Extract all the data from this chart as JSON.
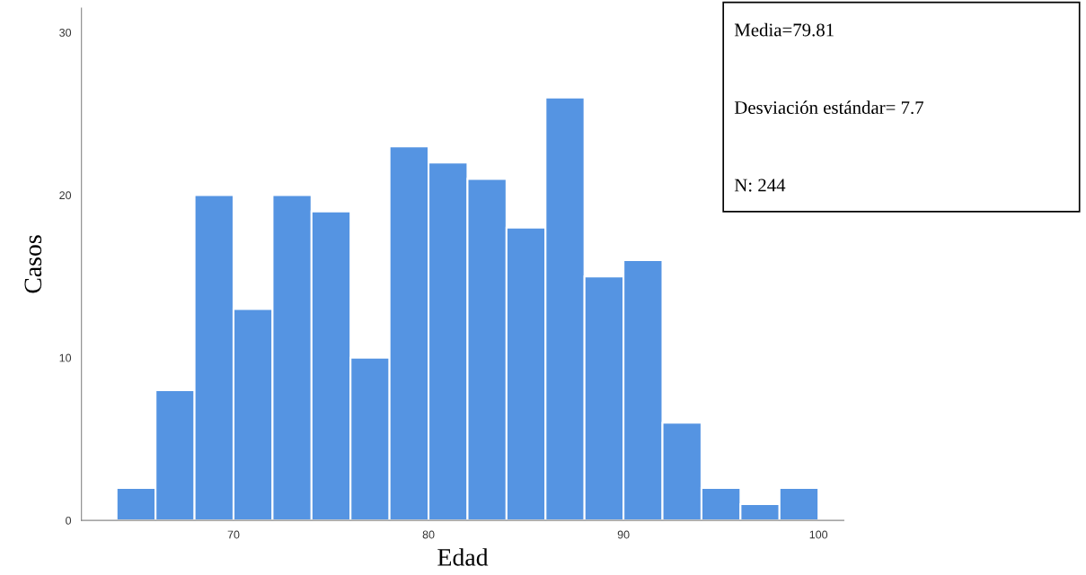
{
  "chart_data": {
    "type": "histogram",
    "xlabel": "Edad",
    "ylabel": "Casos",
    "bins": [
      64,
      66,
      68,
      70,
      72,
      74,
      76,
      78,
      80,
      82,
      84,
      86,
      88,
      90,
      92,
      94,
      96,
      98,
      100
    ],
    "values": [
      2,
      8,
      20,
      13,
      20,
      19,
      10,
      23,
      22,
      21,
      18,
      26,
      15,
      16,
      6,
      2,
      1,
      2
    ],
    "color": "#5594e2",
    "xlim": [
      62.2,
      101.3
    ],
    "xticks": [
      70,
      80,
      90,
      100
    ],
    "ylim": [
      0,
      31.5
    ],
    "yticks": [
      0,
      10,
      20,
      30
    ],
    "grid": false,
    "annotations": [
      "Media=79.81",
      "Desviación estándar= 7.7",
      "N: 244"
    ]
  }
}
